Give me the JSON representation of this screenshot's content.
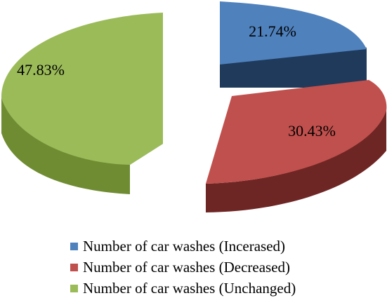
{
  "chart_data": {
    "type": "pie",
    "title": "",
    "slices": [
      {
        "label": "21.74%",
        "value": 21.74,
        "color": "#4f81bd",
        "side_color": "#1f3a5a"
      },
      {
        "label": "30.43%",
        "value": 30.43,
        "color": "#c0504d",
        "side_color": "#6e2624"
      },
      {
        "label": "47.83%",
        "value": 47.83,
        "color": "#9bbb59",
        "side_color": "#6f8c32"
      }
    ],
    "legend": {
      "position": "bottom",
      "items": [
        {
          "name": "Number of car washes (Incerased)",
          "color": "#4f81bd"
        },
        {
          "name": "Number of car washes (Decreased)",
          "color": "#c0504d"
        },
        {
          "name": "Number of car washes (Unchanged)",
          "color": "#9bbb59"
        }
      ]
    }
  }
}
